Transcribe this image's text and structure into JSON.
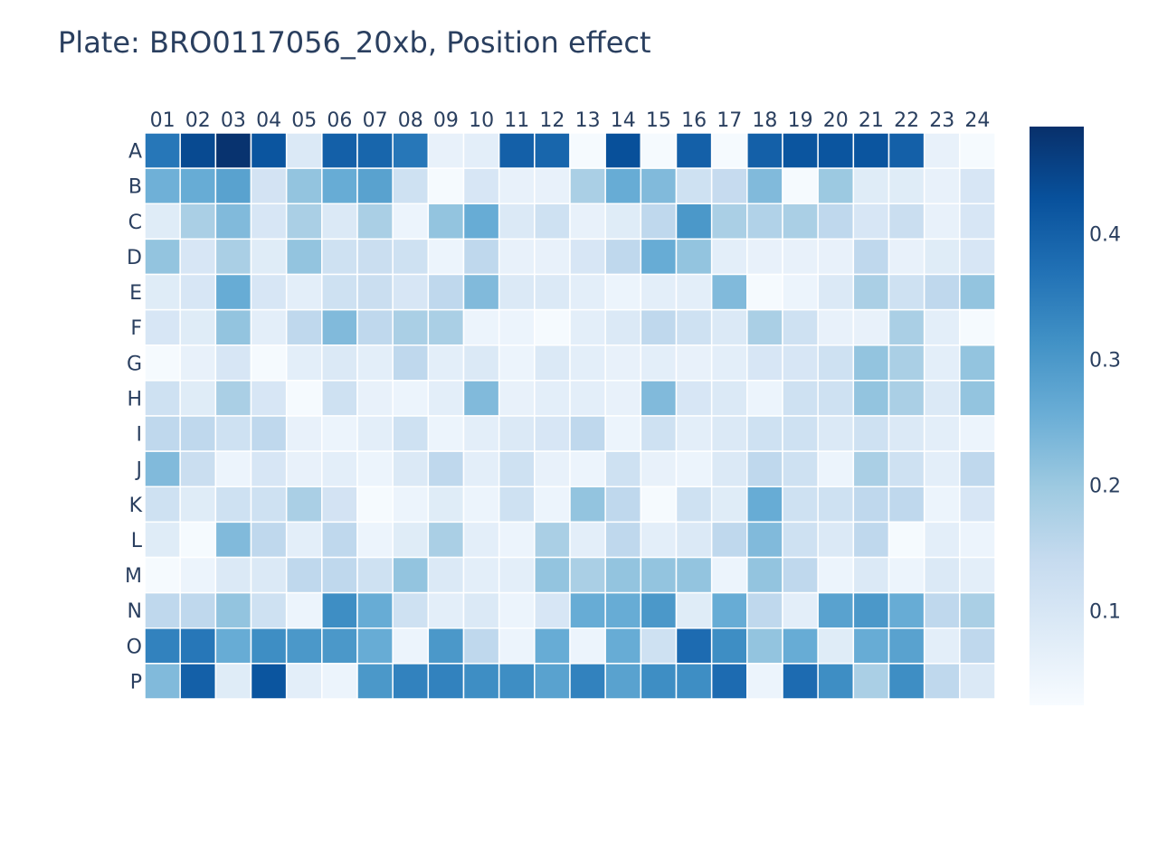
{
  "chart_data": {
    "type": "heatmap",
    "title": "Plate: BRO0117056_20xb, Position effect",
    "x": [
      "01",
      "02",
      "03",
      "04",
      "05",
      "06",
      "07",
      "08",
      "09",
      "10",
      "11",
      "12",
      "13",
      "14",
      "15",
      "16",
      "17",
      "18",
      "19",
      "20",
      "21",
      "22",
      "23",
      "24"
    ],
    "y": [
      "A",
      "B",
      "C",
      "D",
      "E",
      "F",
      "G",
      "H",
      "I",
      "J",
      "K",
      "L",
      "M",
      "N",
      "O",
      "P"
    ],
    "colorscale": "Blues",
    "zmin": 0.025,
    "zmax": 0.485,
    "colorbar_ticks": [
      "0.1",
      "0.2",
      "0.3",
      "0.4"
    ],
    "colorbar_tick_values": [
      0.1,
      0.2,
      0.3,
      0.4
    ],
    "z": [
      [
        0.36,
        0.44,
        0.48,
        0.42,
        0.09,
        0.4,
        0.39,
        0.36,
        0.06,
        0.07,
        0.4,
        0.39,
        0.03,
        0.43,
        0.03,
        0.4,
        0.03,
        0.4,
        0.42,
        0.42,
        0.42,
        0.4,
        0.06,
        0.03
      ],
      [
        0.25,
        0.26,
        0.28,
        0.11,
        0.21,
        0.26,
        0.28,
        0.12,
        0.03,
        0.1,
        0.06,
        0.06,
        0.18,
        0.26,
        0.23,
        0.12,
        0.14,
        0.23,
        0.03,
        0.2,
        0.08,
        0.08,
        0.06,
        0.1
      ],
      [
        0.08,
        0.18,
        0.23,
        0.1,
        0.18,
        0.09,
        0.18,
        0.05,
        0.21,
        0.26,
        0.09,
        0.12,
        0.06,
        0.08,
        0.15,
        0.3,
        0.18,
        0.17,
        0.18,
        0.15,
        0.1,
        0.13,
        0.06,
        0.1
      ],
      [
        0.21,
        0.1,
        0.18,
        0.08,
        0.21,
        0.12,
        0.13,
        0.12,
        0.05,
        0.15,
        0.06,
        0.06,
        0.1,
        0.15,
        0.26,
        0.21,
        0.07,
        0.06,
        0.06,
        0.06,
        0.15,
        0.06,
        0.08,
        0.1
      ],
      [
        0.08,
        0.1,
        0.26,
        0.1,
        0.07,
        0.12,
        0.13,
        0.1,
        0.15,
        0.23,
        0.09,
        0.09,
        0.07,
        0.05,
        0.07,
        0.07,
        0.23,
        0.03,
        0.05,
        0.09,
        0.18,
        0.12,
        0.15,
        0.21
      ],
      [
        0.1,
        0.08,
        0.21,
        0.07,
        0.15,
        0.23,
        0.15,
        0.18,
        0.18,
        0.05,
        0.05,
        0.03,
        0.07,
        0.09,
        0.15,
        0.12,
        0.09,
        0.18,
        0.12,
        0.06,
        0.06,
        0.18,
        0.07,
        0.03
      ],
      [
        0.03,
        0.06,
        0.1,
        0.03,
        0.07,
        0.09,
        0.07,
        0.15,
        0.07,
        0.09,
        0.05,
        0.09,
        0.07,
        0.06,
        0.07,
        0.06,
        0.07,
        0.1,
        0.1,
        0.12,
        0.21,
        0.18,
        0.07,
        0.21
      ],
      [
        0.12,
        0.08,
        0.18,
        0.1,
        0.03,
        0.12,
        0.06,
        0.05,
        0.07,
        0.23,
        0.06,
        0.07,
        0.07,
        0.06,
        0.23,
        0.1,
        0.09,
        0.05,
        0.12,
        0.12,
        0.21,
        0.18,
        0.09,
        0.21
      ],
      [
        0.15,
        0.15,
        0.12,
        0.15,
        0.06,
        0.05,
        0.07,
        0.12,
        0.05,
        0.07,
        0.09,
        0.1,
        0.15,
        0.05,
        0.12,
        0.07,
        0.09,
        0.12,
        0.12,
        0.09,
        0.12,
        0.09,
        0.07,
        0.05
      ],
      [
        0.23,
        0.13,
        0.05,
        0.1,
        0.06,
        0.07,
        0.05,
        0.09,
        0.15,
        0.07,
        0.12,
        0.06,
        0.05,
        0.12,
        0.06,
        0.05,
        0.09,
        0.15,
        0.12,
        0.05,
        0.18,
        0.12,
        0.07,
        0.15
      ],
      [
        0.12,
        0.08,
        0.12,
        0.12,
        0.18,
        0.11,
        0.03,
        0.05,
        0.08,
        0.05,
        0.12,
        0.05,
        0.21,
        0.15,
        0.03,
        0.12,
        0.08,
        0.26,
        0.12,
        0.12,
        0.15,
        0.15,
        0.05,
        0.1
      ],
      [
        0.08,
        0.03,
        0.23,
        0.15,
        0.07,
        0.15,
        0.05,
        0.08,
        0.18,
        0.07,
        0.05,
        0.18,
        0.07,
        0.15,
        0.07,
        0.09,
        0.15,
        0.23,
        0.12,
        0.09,
        0.15,
        0.03,
        0.07,
        0.05
      ],
      [
        0.03,
        0.05,
        0.09,
        0.09,
        0.15,
        0.15,
        0.12,
        0.21,
        0.09,
        0.07,
        0.07,
        0.21,
        0.18,
        0.21,
        0.21,
        0.21,
        0.05,
        0.21,
        0.15,
        0.05,
        0.09,
        0.05,
        0.09,
        0.07
      ],
      [
        0.15,
        0.15,
        0.21,
        0.12,
        0.05,
        0.32,
        0.26,
        0.12,
        0.07,
        0.09,
        0.05,
        0.1,
        0.26,
        0.26,
        0.3,
        0.08,
        0.26,
        0.15,
        0.07,
        0.28,
        0.3,
        0.26,
        0.15,
        0.18
      ],
      [
        0.34,
        0.36,
        0.26,
        0.32,
        0.3,
        0.3,
        0.26,
        0.05,
        0.3,
        0.15,
        0.05,
        0.26,
        0.05,
        0.26,
        0.12,
        0.38,
        0.32,
        0.21,
        0.26,
        0.08,
        0.26,
        0.28,
        0.07,
        0.15
      ],
      [
        0.23,
        0.4,
        0.08,
        0.42,
        0.07,
        0.05,
        0.3,
        0.34,
        0.34,
        0.32,
        0.32,
        0.28,
        0.34,
        0.28,
        0.32,
        0.32,
        0.38,
        0.05,
        0.38,
        0.32,
        0.18,
        0.32,
        0.15,
        0.09
      ]
    ]
  }
}
